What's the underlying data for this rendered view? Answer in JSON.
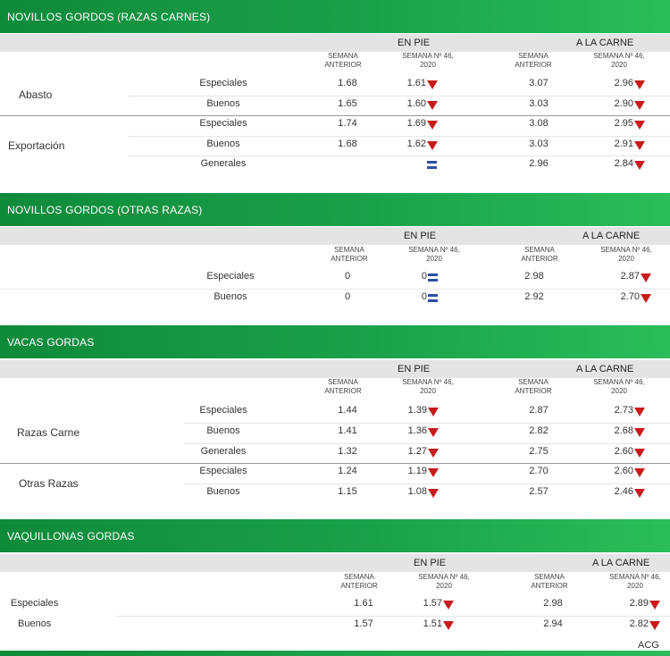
{
  "sections": [
    {
      "title": "NOVILLOS GORDOS (RAZAS CARNES)",
      "col_en_pie": "EN PIE",
      "col_carne": "A LA CARNE",
      "semana_anterior": "SEMANA ANTERIOR",
      "semana_actual": "SEMANA Nº 46, 2020",
      "groups": [
        "Abasto",
        "Exportación"
      ],
      "rows": [
        {
          "label": "Especiales",
          "pie_ant": "1.68",
          "pie_act": "1.61",
          "pie_trend": "down",
          "carne_ant": "3.07",
          "carne_act": "2.96",
          "carne_trend": "down"
        },
        {
          "label": "Buenos",
          "pie_ant": "1.65",
          "pie_act": "1.60",
          "pie_trend": "down",
          "carne_ant": "3.03",
          "carne_act": "2.90",
          "carne_trend": "down"
        },
        {
          "label": "Especiales",
          "pie_ant": "1.74",
          "pie_act": "1.69",
          "pie_trend": "down",
          "carne_ant": "3.08",
          "carne_act": "2.95",
          "carne_trend": "down"
        },
        {
          "label": "Buenos",
          "pie_ant": "1.68",
          "pie_act": "1.62",
          "pie_trend": "down",
          "carne_ant": "3.03",
          "carne_act": "2.91",
          "carne_trend": "down"
        },
        {
          "label": "Generales",
          "pie_ant": "",
          "pie_act": "",
          "pie_trend": "equal",
          "carne_ant": "2.96",
          "carne_act": "2.84",
          "carne_trend": "down"
        }
      ]
    },
    {
      "title": "NOVILLOS GORDOS (OTRAS RAZAS)",
      "col_en_pie": "EN PIE",
      "col_carne": "A LA CARNE",
      "semana_anterior": "SEMANA ANTERIOR",
      "semana_actual": "SEMANA Nº 46, 2020",
      "rows": [
        {
          "label": "Especiales",
          "pie_ant": "0",
          "pie_act": "0",
          "pie_trend": "equal",
          "carne_ant": "2.98",
          "carne_act": "2.87",
          "carne_trend": "down"
        },
        {
          "label": "Buenos",
          "pie_ant": "0",
          "pie_act": "0",
          "pie_trend": "equal",
          "carne_ant": "2.92",
          "carne_act": "2.70",
          "carne_trend": "down"
        }
      ]
    },
    {
      "title": "VACAS GORDAS",
      "col_en_pie": "EN PIE",
      "col_carne": "A LA CARNE",
      "semana_anterior": "SEMANA ANTERIOR",
      "semana_actual": "SEMANA Nº 46, 2020",
      "groups": [
        "Razas Carne",
        "Otras Razas"
      ],
      "rows": [
        {
          "label": "Especiales",
          "pie_ant": "1.44",
          "pie_act": "1.39",
          "pie_trend": "down",
          "carne_ant": "2.87",
          "carne_act": "2.73",
          "carne_trend": "down"
        },
        {
          "label": "Buenos",
          "pie_ant": "1.41",
          "pie_act": "1.36",
          "pie_trend": "down",
          "carne_ant": "2.82",
          "carne_act": "2.68",
          "carne_trend": "down"
        },
        {
          "label": "Generales",
          "pie_ant": "1.32",
          "pie_act": "1.27",
          "pie_trend": "down",
          "carne_ant": "2.75",
          "carne_act": "2.60",
          "carne_trend": "down"
        },
        {
          "label": "Especiales",
          "pie_ant": "1.24",
          "pie_act": "1.19",
          "pie_trend": "down",
          "carne_ant": "2.70",
          "carne_act": "2.60",
          "carne_trend": "down"
        },
        {
          "label": "Buenos",
          "pie_ant": "1.15",
          "pie_act": "1.08",
          "pie_trend": "down",
          "carne_ant": "2.57",
          "carne_act": "2.46",
          "carne_trend": "down"
        }
      ]
    },
    {
      "title": "VAQUILLONAS GORDAS",
      "col_en_pie": "EN PIE",
      "col_carne": "A LA CARNE",
      "semana_anterior": "SEMANA ANTERIOR",
      "semana_actual": "SEMANA Nº 46, 2020",
      "rows": [
        {
          "label": "Especiales",
          "pie_ant": "1.61",
          "pie_act": "1.57",
          "pie_trend": "down",
          "carne_ant": "2.98",
          "carne_act": "2.89",
          "carne_trend": "down"
        },
        {
          "label": "Buenos",
          "pie_ant": "1.57",
          "pie_act": "1.51",
          "pie_trend": "down",
          "carne_ant": "2.94",
          "carne_act": "2.82",
          "carne_trend": "down"
        }
      ]
    }
  ],
  "footer": {
    "credit": "ACG"
  },
  "colors": {
    "header_green": "#1aa14a",
    "down_arrow": "#c81b1b",
    "equal_icon": "#2c4ea3"
  }
}
